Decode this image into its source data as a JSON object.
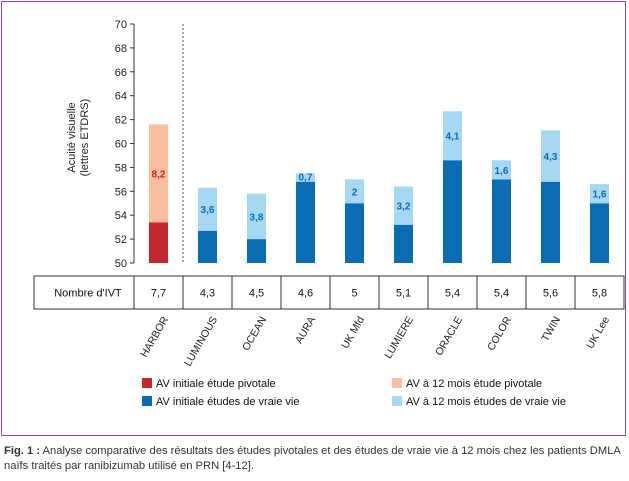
{
  "chart_data": {
    "type": "bar",
    "stacked": true,
    "ylabel": "Acuité visuelle (lettres ETDRS)",
    "ylim": [
      50,
      70
    ],
    "yticks": [
      50,
      52,
      54,
      56,
      58,
      60,
      62,
      64,
      66,
      68,
      70
    ],
    "categories": [
      "HARBOR",
      "LUMINOUS",
      "OCEAN",
      "AURA",
      "UK Mfd",
      "LUMIERE",
      "ORACLE",
      "COLOR",
      "TWIN",
      "UK Lee"
    ],
    "baseline": [
      53.4,
      52.7,
      52.0,
      56.8,
      55.0,
      53.2,
      58.6,
      57.0,
      56.8,
      55.0
    ],
    "gain": [
      8.2,
      3.6,
      3.8,
      0.7,
      2,
      3.2,
      4.1,
      1.6,
      4.3,
      1.6
    ],
    "gain_labels": [
      "8,2",
      "3,6",
      "3,8",
      "0,7",
      "2",
      "3,2",
      "4,1",
      "1,6",
      "4,3",
      "1,6"
    ],
    "pivotal_index": 0,
    "ivt_row": {
      "label": "Nombre d'IVT",
      "values": [
        "7,7",
        "4,3",
        "4,5",
        "4,6",
        "5",
        "5,1",
        "5,4",
        "5,4",
        "5,6",
        "5,8"
      ]
    },
    "legend": [
      {
        "label": "AV initiale étude pivotale",
        "color": "#c1272d"
      },
      {
        "label": "AV à 12 mois étude pivotale",
        "color": "#f7bfa0"
      },
      {
        "label": "AV initiale études de vraie vie",
        "color": "#0a6db4"
      },
      {
        "label": "AV à 12 mois études de vraie vie",
        "color": "#a6d8f4"
      }
    ],
    "colors": {
      "pivotal_baseline": "#c1272d",
      "pivotal_gain": "#f7bfa0",
      "rw_baseline": "#0a6db4",
      "rw_gain": "#a6d8f4",
      "pivotal_label": "#c1272d",
      "rw_label": "#0a6db4"
    }
  },
  "caption": {
    "prefix": "Fig. 1 :",
    "text": " Analyse comparative des résultats des études pivotales et des études de vraie vie à 12 mois chez les patients DMLA naïfs traités par ranibizumab utilisé en PRN [4-12]."
  }
}
